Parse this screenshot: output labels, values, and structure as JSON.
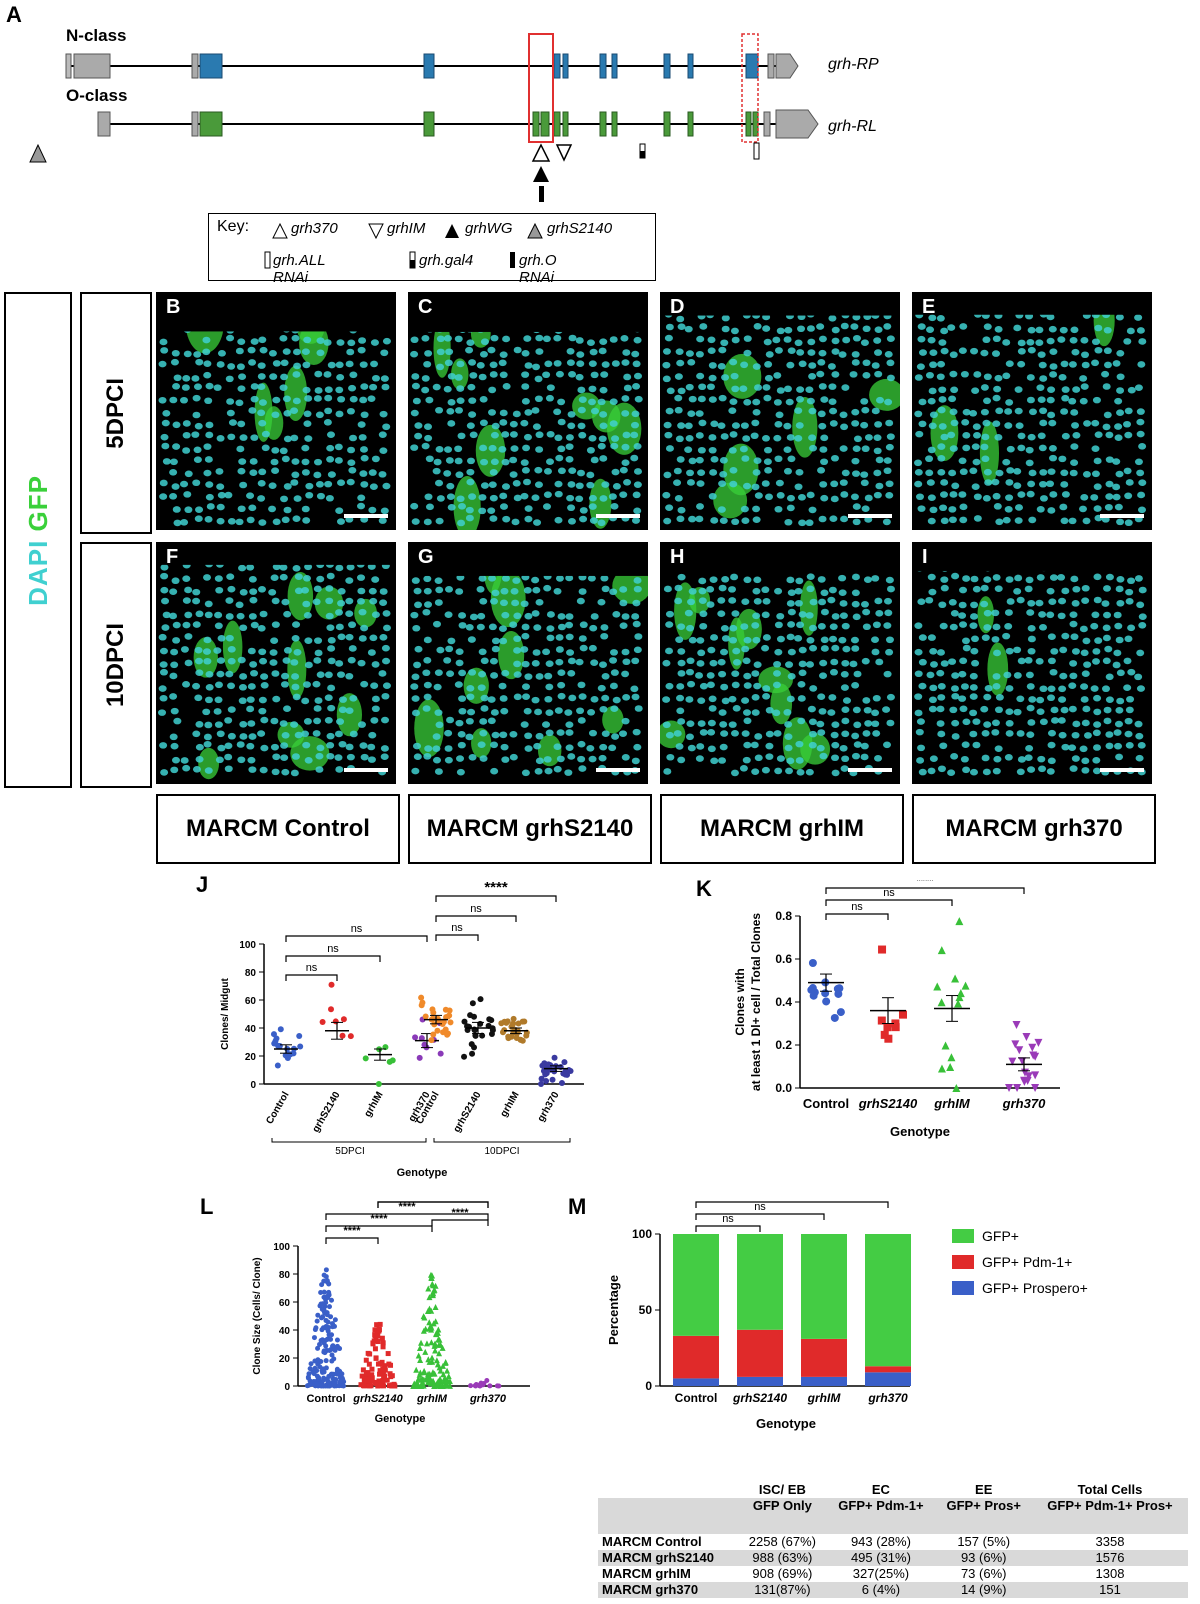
{
  "panel_a": {
    "letter": "A",
    "track_labels": [
      "N-class",
      "O-class"
    ],
    "transcript_labels": [
      "grh-RP",
      "grh-RL"
    ],
    "key": {
      "title": "Key:",
      "items": [
        "grh370",
        "grhIM",
        "grhWG",
        "grhS2140",
        "grh.ALL RNAi",
        "grh.gal4",
        "grh.O RNAi"
      ]
    },
    "colors": {
      "n_class": "#2a7ab0",
      "o_class": "#4a9a3a",
      "utr": "#aaaaaa",
      "highlight": "#e03030"
    }
  },
  "micrographs": {
    "side_label": "DAPI GFP",
    "rows": [
      "5DPCI",
      "10DPCI"
    ],
    "letters": [
      "B",
      "C",
      "D",
      "E",
      "F",
      "G",
      "H",
      "I"
    ],
    "columns": [
      "MARCM Control",
      "MARCM grhS2140",
      "MARCM grhIM",
      "MARCM grh370"
    ],
    "colors": {
      "dapi": "#40d0d0",
      "gfp": "#3ad03a"
    }
  },
  "panel_j": {
    "letter": "J",
    "chart_data": {
      "type": "scatter",
      "ylabel": "Clones/ Midgut",
      "xlabel": "Genotype",
      "ylim": [
        0,
        100
      ],
      "yticks": [
        0,
        20,
        40,
        60,
        80,
        100
      ],
      "categories": [
        "Control",
        "grhS2140",
        "grhIM",
        "grh370",
        "Control",
        "grhS2140",
        "grhIM",
        "grh370"
      ],
      "groups": [
        "5DPCI",
        "10DPCI"
      ],
      "means": [
        25,
        38,
        21,
        31,
        46,
        40,
        38,
        11
      ],
      "sem": [
        3,
        6,
        4,
        5,
        3,
        4,
        2,
        2
      ],
      "colors": [
        "#3a5fc8",
        "#e02a2a",
        "#38c038",
        "#8a3ab8",
        "#f08a2a",
        "#111111",
        "#b07a2a",
        "#3a3aa0"
      ],
      "significance": [
        "ns",
        "ns",
        "ns",
        "ns",
        "ns",
        "****"
      ]
    }
  },
  "panel_k": {
    "letter": "K",
    "chart_data": {
      "type": "scatter",
      "ylabel": "Clones with at least 1 Dl+ cell / Total Clones",
      "xlabel": "Genotype",
      "ylim": [
        0,
        0.8
      ],
      "yticks": [
        0.0,
        0.2,
        0.4,
        0.6,
        0.8
      ],
      "categories": [
        "Control",
        "grhS2140",
        "grhIM",
        "grh370"
      ],
      "means": [
        0.49,
        0.36,
        0.37,
        0.11
      ],
      "sem": [
        0.04,
        0.06,
        0.06,
        0.03
      ],
      "colors": [
        "#3a5fc8",
        "#e02a2a",
        "#38c038",
        "#9a3ab8"
      ],
      "significance": [
        "ns",
        "ns",
        "****"
      ]
    }
  },
  "panel_l": {
    "letter": "L",
    "chart_data": {
      "type": "scatter",
      "ylabel": "Clone Size (Cells/ Clone)",
      "xlabel": "Genotype",
      "ylim": [
        0,
        100
      ],
      "yticks": [
        0,
        20,
        40,
        60,
        80,
        100
      ],
      "categories": [
        "Control",
        "grhS2140",
        "grhIM",
        "grh370"
      ],
      "colors": [
        "#3a5fc8",
        "#e02a2a",
        "#38c038",
        "#9a3ab8"
      ],
      "significance": [
        "****",
        "****",
        "****",
        "****",
        "****",
        "****"
      ]
    }
  },
  "panel_m": {
    "letter": "M",
    "chart_data": {
      "type": "bar",
      "ylabel": "Percentage",
      "xlabel": "Genotype",
      "ylim": [
        0,
        100
      ],
      "yticks": [
        0,
        50,
        100
      ],
      "categories": [
        "Control",
        "grhS2140",
        "grhIM",
        "grh370"
      ],
      "series": [
        {
          "name": "GFP+ Prospero+",
          "values": [
            5,
            6,
            6,
            9
          ],
          "color": "#3a5fc8"
        },
        {
          "name": "GFP+ Pdm-1+",
          "values": [
            28,
            31,
            25,
            4
          ],
          "color": "#e02a2a"
        },
        {
          "name": "GFP+",
          "values": [
            67,
            63,
            69,
            87
          ],
          "color": "#44cc44"
        }
      ],
      "legend_order": [
        "GFP+",
        "GFP+ Pdm-1+",
        "GFP+ Prospero+"
      ],
      "significance": [
        "ns",
        "ns",
        "****"
      ]
    },
    "table": {
      "header1": [
        "",
        "ISC/ EB",
        "EC",
        "EE",
        "Total Cells"
      ],
      "header2": [
        "",
        "GFP Only",
        "GFP+ Pdm-1+",
        "GFP+ Pros+",
        "GFP+ Pdm-1+ Pros+"
      ],
      "rows": [
        [
          "MARCM Control",
          "2258 (67%)",
          "943 (28%)",
          "157 (5%)",
          "3358"
        ],
        [
          "MARCM grhS2140",
          "988 (63%)",
          "495 (31%)",
          "93 (6%)",
          "1576"
        ],
        [
          "MARCM grhIM",
          "908 (69%)",
          "327(25%)",
          "73 (6%)",
          "1308"
        ],
        [
          "MARCM grh370",
          "131(87%)",
          "6 (4%)",
          "14 (9%)",
          "151"
        ]
      ]
    }
  }
}
